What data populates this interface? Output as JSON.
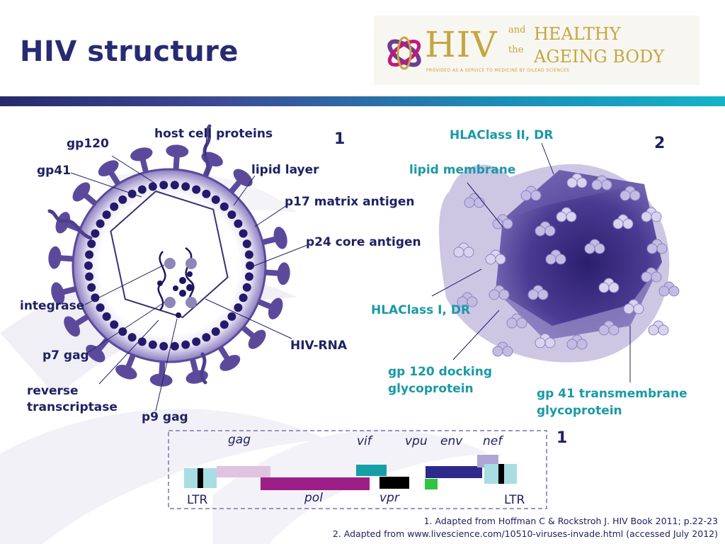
{
  "title": "HIV structure",
  "logo": {
    "hiv": "HIV",
    "and": "and",
    "the": "the",
    "line1": "HEALTHY",
    "line2": "AGEING BODY",
    "tagline": "PROVIDED AS A SERVICE TO MEDICINE BY GILEAD SCIENCES"
  },
  "diagram1": {
    "number": "1",
    "labels": {
      "gp120": "gp120",
      "gp41": "gp41",
      "host_cell_proteins": "host cell proteins",
      "lipid_layer": "lipid layer",
      "p17": "p17 matrix antigen",
      "p24": "p24 core antigen",
      "integrase": "integrase",
      "p7": "p7 gag",
      "rt1": "reverse",
      "rt2": "transcriptase",
      "p9": "p9 gag",
      "hiv_rna": "HIV-RNA"
    }
  },
  "diagram2": {
    "number": "2",
    "labels": {
      "hla2": "HLAClass II, DR",
      "lipid_membrane": "lipid membrane",
      "hla1": "HLAClass I, DR",
      "gp120a": "gp 120 docking",
      "gp120b": "glycoprotein",
      "gp41a": "gp 41 transmembrane",
      "gp41b": "glycoprotein"
    }
  },
  "genome": {
    "number": "1",
    "genes": {
      "gag": "gag",
      "vif": "vif",
      "vpu": "vpu",
      "env": "env",
      "nef": "nef",
      "pol": "pol",
      "vpr": "vpr"
    },
    "ltr_left": "LTR",
    "ltr_right": "LTR"
  },
  "footnotes": {
    "note1": "1. Adapted from Hoffman C & Rockstroh J. HIV Book 2011; p.22-23",
    "note2": "2. Adapted from www.livescience.com/10510-viruses-invade.html (accessed July 2012)"
  },
  "colors": {
    "navy": "#272b73",
    "teal": "#1a99a6",
    "virion_purple": "#5b4a9c",
    "gold": "#c4a642"
  }
}
